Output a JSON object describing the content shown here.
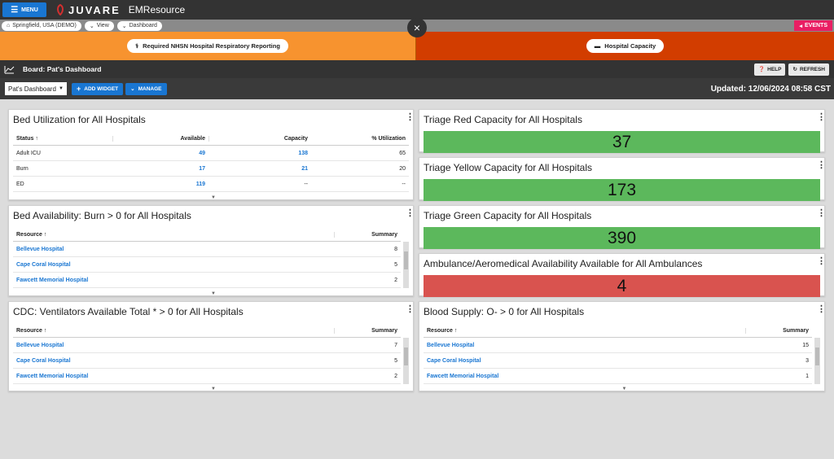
{
  "topbar": {
    "menu_label": "MENU",
    "brand": "JUVARE",
    "app_title": "EMResource"
  },
  "breadcrumb": {
    "items": [
      "Springfield, USA (DEMO)",
      "View",
      "Dashboard"
    ],
    "events_label": "EVENTS"
  },
  "close_glyph": "×",
  "banners": {
    "left_label": "Required NHSN Hospital Respiratory Reporting",
    "right_label": "Hospital Capacity"
  },
  "board": {
    "title": "Board: Pat's Dashboard",
    "help_label": "HELP",
    "refresh_label": "REFRESH"
  },
  "toolbar": {
    "select_value": "Pat's Dashboard",
    "add_widget_label": "ADD WIDGET",
    "manage_label": "MANAGE",
    "updated": "Updated: 12/06/2024 08:58 CST"
  },
  "colors": {
    "orange_banner": "#f7932f",
    "red_banner": "#d23d00",
    "green_status": "#5cb85c",
    "red_status": "#d9534f",
    "accent": "#1976d2"
  },
  "bed_util": {
    "title": "Bed Utilization for All Hospitals",
    "headers": [
      "Status",
      "Available",
      "Capacity",
      "% Utilization"
    ],
    "rows": [
      {
        "status": "Adult ICU",
        "available": "49",
        "capacity": "138",
        "util": "65"
      },
      {
        "status": "Burn",
        "available": "17",
        "capacity": "21",
        "util": "20"
      },
      {
        "status": "ED",
        "available": "119",
        "capacity": "--",
        "util": "--"
      }
    ]
  },
  "bed_avail": {
    "title": "Bed Availability: Burn > 0 for All Hospitals",
    "headers": [
      "Resource",
      "Summary"
    ],
    "rows": [
      {
        "resource": "Bellevue Hospital",
        "summary": "8"
      },
      {
        "resource": "Cape Coral Hospital",
        "summary": "5"
      },
      {
        "resource": "Fawcett Memorial Hospital",
        "summary": "2"
      }
    ]
  },
  "ventilators": {
    "title": "CDC: Ventilators Available Total * > 0 for All Hospitals",
    "headers": [
      "Resource",
      "Summary"
    ],
    "rows": [
      {
        "resource": "Bellevue Hospital",
        "summary": "7"
      },
      {
        "resource": "Cape Coral Hospital",
        "summary": "5"
      },
      {
        "resource": "Fawcett Memorial Hospital",
        "summary": "2"
      }
    ]
  },
  "triage_red": {
    "title": "Triage Red Capacity for All Hospitals",
    "value": "37"
  },
  "triage_yellow": {
    "title": "Triage Yellow Capacity for All Hospitals",
    "value": "173"
  },
  "triage_green": {
    "title": "Triage Green Capacity for All Hospitals",
    "value": "390"
  },
  "ambulance": {
    "title": "Ambulance/Aeromedical Availability Available for All Ambulances",
    "value": "4"
  },
  "blood": {
    "title": "Blood Supply: O- > 0 for All Hospitals",
    "headers": [
      "Resource",
      "Summary"
    ],
    "rows": [
      {
        "resource": "Bellevue Hospital",
        "summary": "15"
      },
      {
        "resource": "Cape Coral Hospital",
        "summary": "3"
      },
      {
        "resource": "Fawcett Memorial Hospital",
        "summary": "1"
      }
    ]
  }
}
